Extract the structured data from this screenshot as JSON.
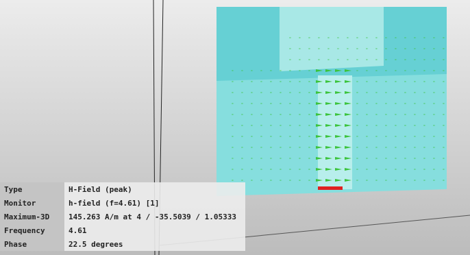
{
  "info": {
    "rows": [
      [
        "Type",
        "H-Field (peak)"
      ],
      [
        "Monitor",
        "h-field (f=4.61) [1]"
      ],
      [
        "Maximum-3D",
        "145.263 A/m at 4 / -35.5039 / 1.05333"
      ],
      [
        "Frequency",
        "4.61"
      ],
      [
        "Phase",
        "22.5 degrees"
      ]
    ]
  }
}
